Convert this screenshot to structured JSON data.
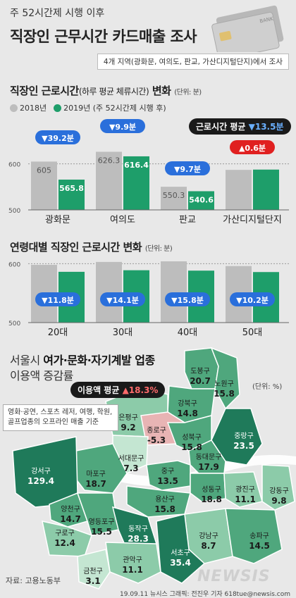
{
  "header": {
    "subtitle": "주 52시간제 시행 이후",
    "title": "직장인 근무시간 카드매출 조사",
    "region_note": "4개 지역(광화문, 여의도, 판교, 가산디지털단지)에서 조사"
  },
  "section1": {
    "title_main": "직장인 근로시간",
    "title_paren": "(하루 평균 체류시간)",
    "title_end": " 변화",
    "unit": "(단위: 분)",
    "legend_2018": "2018년",
    "legend_2019": "2019년 (주 52시간제 시행 후)",
    "avg_label": "근로시간 평균",
    "avg_value": "▼13.5분"
  },
  "section2": {
    "title_main": "연령대별 직장인 근로시간 변화",
    "unit": "(단위: 분)"
  },
  "section3": {
    "title_line1_a": "서울시 ",
    "title_line1_b": "여가·문화·자기계발 업종",
    "title_line2": "이용액 증감률",
    "avg_label": "이용액 평균",
    "avg_value": "▲18.3%",
    "unit": "(단위: %)",
    "note": "영화·공연, 스포츠 레저, 여행, 학원, 골프업종의 오프라인 매출 기준",
    "source": "자료: 고용노동부",
    "credit": "19.09.11  뉴시스 그래픽: 전진우 기자 618tue@newsis.com",
    "watermark": "NEWSIS"
  },
  "colors": {
    "gray_bar": "#bdbdbd",
    "green_bar": "#1e9e6a",
    "badge_blue": "#2a6fdb",
    "badge_red": "#e02020",
    "map_dark": "#1f7a5a",
    "map_mid": "#4fa77d",
    "map_light": "#8ccba9",
    "map_pale": "#c4e6d2",
    "map_neg": "#e8b4b4"
  },
  "chart_data": [
    {
      "type": "bar",
      "categories": [
        "광화문",
        "여의도",
        "판교",
        "가산디지털단지"
      ],
      "series": [
        {
          "name": "2018년",
          "values": [
            605,
            626.3,
            550.3,
            587
          ]
        },
        {
          "name": "2019년 (주 52시간제 시행 후)",
          "values": [
            565.8,
            616.4,
            540.6,
            587.6
          ]
        }
      ],
      "value_labels_2018": [
        "605",
        "626.3",
        "550.3",
        ""
      ],
      "value_labels_2019": [
        "565.8",
        "616.4",
        "540.6",
        ""
      ],
      "changes": [
        "▼39.2분",
        "▼9.9분",
        "▼9.7분",
        "▲0.6분"
      ],
      "ylim": [
        500,
        650
      ],
      "yticks": [
        "600",
        "500"
      ],
      "xlabel": "",
      "ylabel": ""
    },
    {
      "type": "bar",
      "categories": [
        "20대",
        "30대",
        "40대",
        "50대"
      ],
      "series": [
        {
          "name": "2018년",
          "values": [
            598,
            603,
            604,
            596
          ]
        },
        {
          "name": "2019년",
          "values": [
            586.2,
            588.9,
            588.2,
            585.8
          ]
        }
      ],
      "changes": [
        "▼11.8분",
        "▼14.1분",
        "▼15.8분",
        "▼10.2분"
      ],
      "ylim": [
        500,
        610
      ],
      "yticks": [
        "600",
        "500"
      ],
      "xlabel": "",
      "ylabel": ""
    },
    {
      "type": "table",
      "districts": [
        {
          "name": "도봉구",
          "value": "20.7"
        },
        {
          "name": "노원구",
          "value": "15.8"
        },
        {
          "name": "강북구",
          "value": "14.8"
        },
        {
          "name": "은평구",
          "value": "9.2"
        },
        {
          "name": "종로구",
          "value": "-5.3"
        },
        {
          "name": "성북구",
          "value": "15.8"
        },
        {
          "name": "중랑구",
          "value": "23.5"
        },
        {
          "name": "동대문구",
          "value": "17.9"
        },
        {
          "name": "서대문구",
          "value": "7.3"
        },
        {
          "name": "마포구",
          "value": "18.7"
        },
        {
          "name": "중구",
          "value": "13.5"
        },
        {
          "name": "성동구",
          "value": "18.8"
        },
        {
          "name": "광진구",
          "value": "11.1"
        },
        {
          "name": "용산구",
          "value": "15.8"
        },
        {
          "name": "강동구",
          "value": "9.8"
        },
        {
          "name": "강서구",
          "value": "129.4"
        },
        {
          "name": "양천구",
          "value": "14.7"
        },
        {
          "name": "영등포구",
          "value": "15.5"
        },
        {
          "name": "구로구",
          "value": "12.4"
        },
        {
          "name": "동작구",
          "value": "28.3"
        },
        {
          "name": "강남구",
          "value": "8.7"
        },
        {
          "name": "송파구",
          "value": "14.5"
        },
        {
          "name": "서초구",
          "value": "35.4"
        },
        {
          "name": "관악구",
          "value": "11.1"
        },
        {
          "name": "금천구",
          "value": "3.1"
        }
      ]
    }
  ]
}
